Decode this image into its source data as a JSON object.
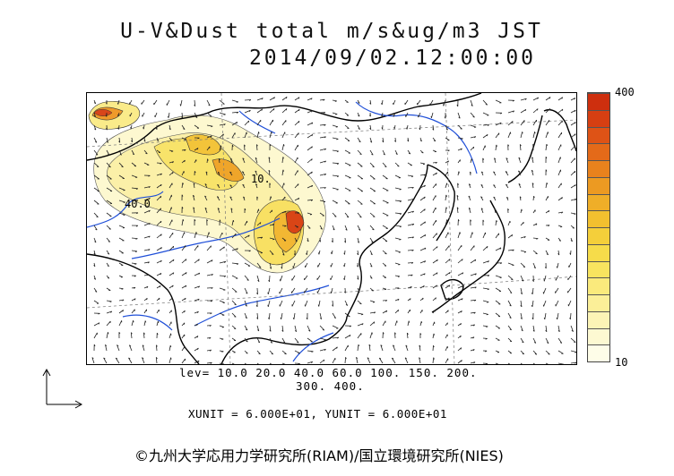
{
  "title": {
    "line1": "U-V&Dust total m/s&ug/m3 JST",
    "line2": "2014/09/02.12:00:00"
  },
  "colorbar": {
    "max_label": "400",
    "min_label": "10",
    "colors": [
      "#fefde8",
      "#fdf9d2",
      "#fcf4b6",
      "#fbef98",
      "#faea7c",
      "#f8e45f",
      "#f6dc4a",
      "#f4cf3a",
      "#f2c02f",
      "#efae28",
      "#ec9a22",
      "#e8821d",
      "#e46a19",
      "#de5316",
      "#d63f12",
      "#ce2f0e"
    ]
  },
  "contour_labels": [
    "10.",
    "40.0"
  ],
  "levels": {
    "line1": "lev= 10.0 20.0 40.0 60.0 100. 150. 200.",
    "line2": "300. 400."
  },
  "units": "XUNIT = 6.000E+01, YUNIT = 6.000E+01",
  "copyright": "©九州大学応用力学研究所(RIAM)/国立環境研究所(NIES)",
  "map_layers": [
    "dust-concentration-field",
    "wind-vector-field",
    "coastlines",
    "rivers",
    "lat-lon-grid"
  ]
}
